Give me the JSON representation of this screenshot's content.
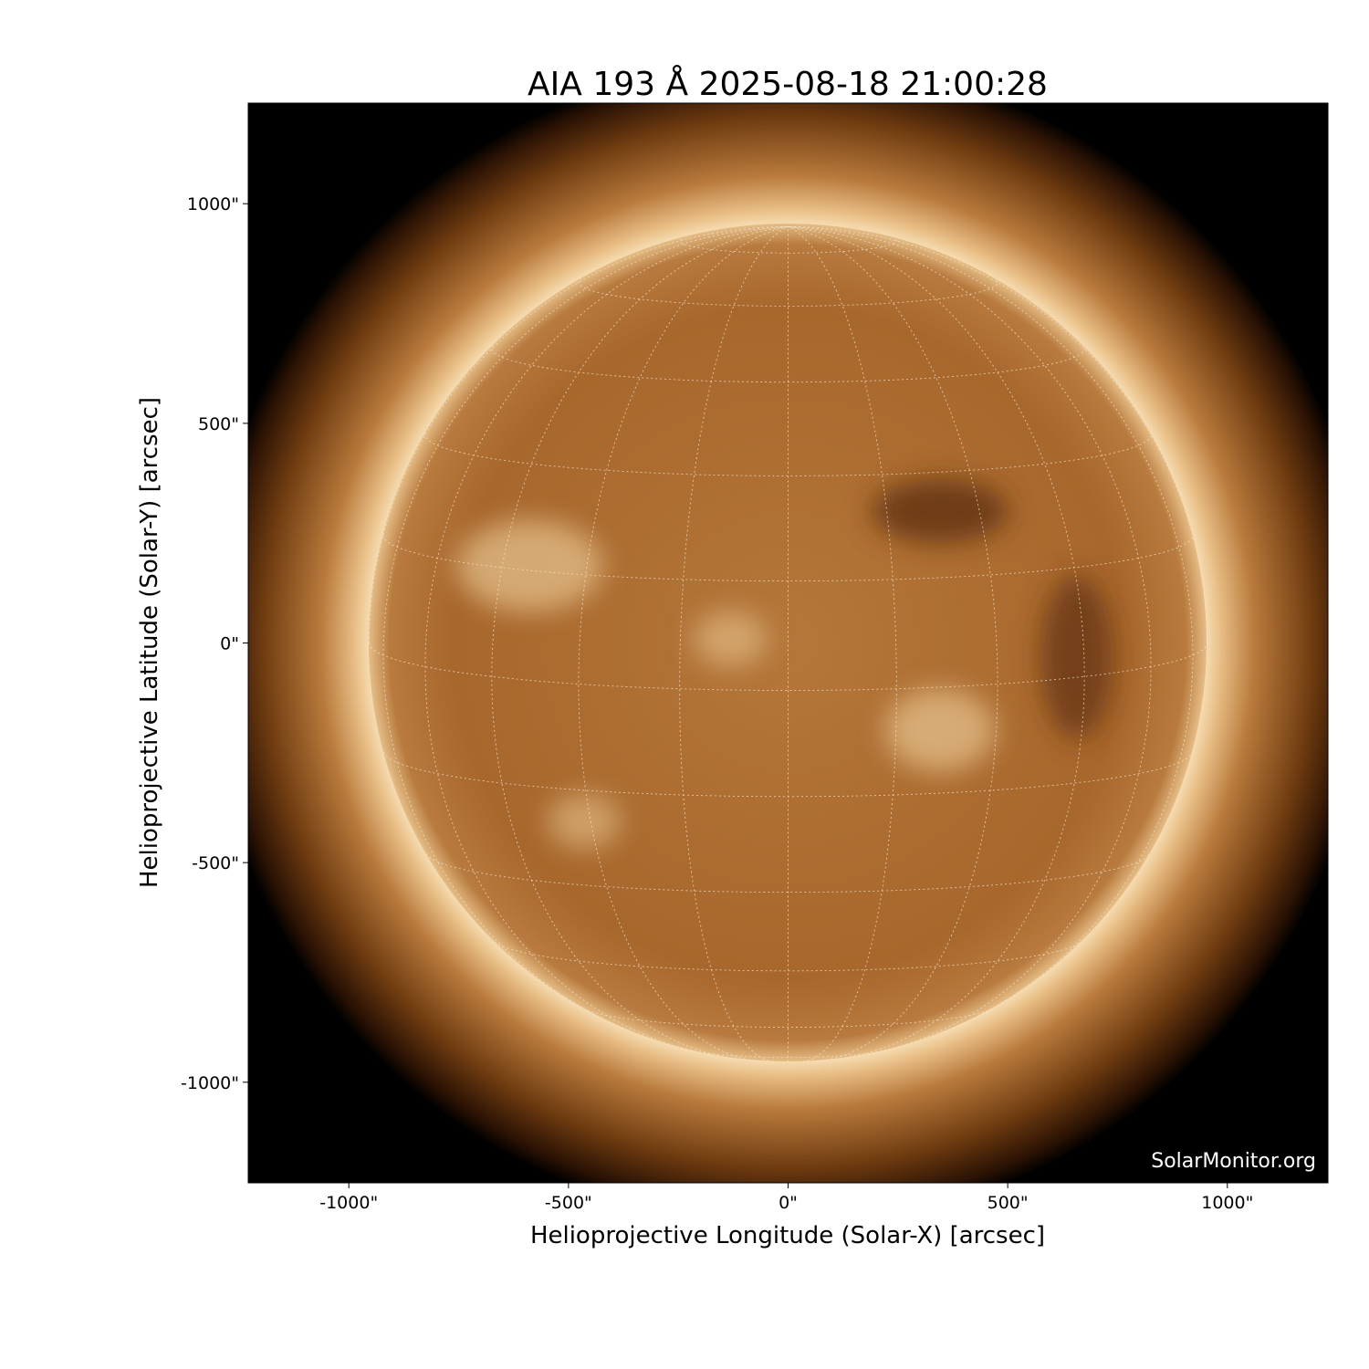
{
  "chart_data": {
    "type": "image",
    "title": "AIA 193 Å 2025-08-18 21:00:28",
    "xlabel": "Helioprojective Longitude (Solar-X) [arcsec]",
    "ylabel": "Helioprojective Latitude (Solar-Y) [arcsec]",
    "xlim": [
      -1229,
      1229
    ],
    "ylim": [
      -1229,
      1229
    ],
    "xticks": [
      -1000,
      -500,
      0,
      500,
      1000
    ],
    "yticks": [
      1000,
      500,
      0,
      -500,
      -1000
    ],
    "xtick_labels": [
      "-1000\"",
      "-500\"",
      "0\"",
      "500\"",
      "1000\""
    ],
    "ytick_labels": [
      "1000\"",
      "500\"",
      "0\"",
      "-500\"",
      "-1000\""
    ],
    "solar_radius_arcsec": 954,
    "grid": "heliographic lat/lon every 15°, dotted",
    "colormap": "sdoaia193",
    "colors": {
      "background": "#000000",
      "disk": "#a8672c",
      "limb": "#f3d9a8",
      "corona": "#6b3a12"
    }
  },
  "watermark": "SolarMonitor.org"
}
